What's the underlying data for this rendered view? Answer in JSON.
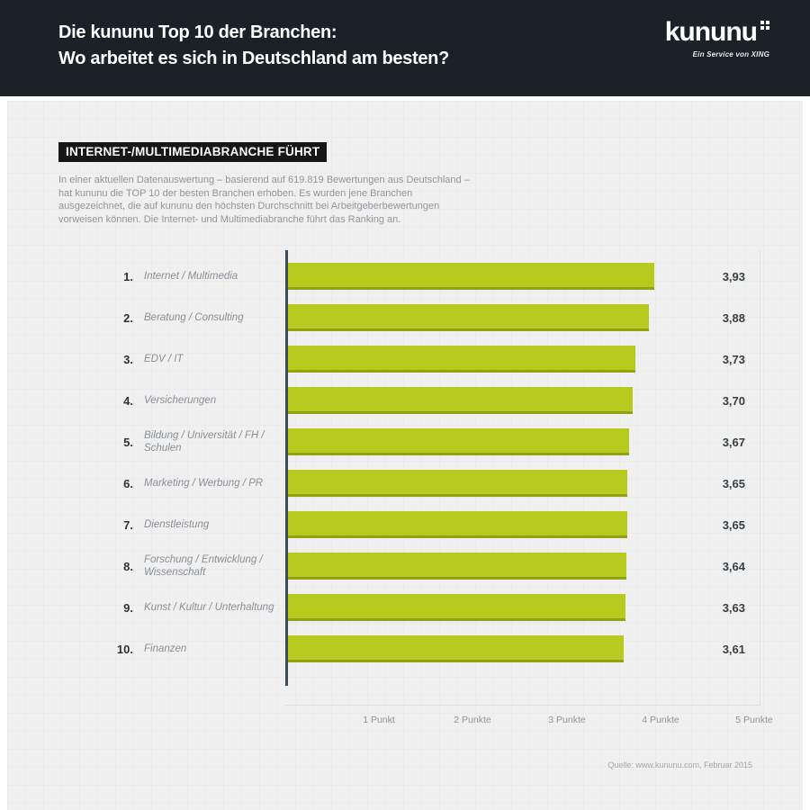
{
  "header": {
    "title_line1": "Die kununu Top 10 der Branchen:",
    "title_line2": "Wo arbeitet es sich in Deutschland am besten?",
    "logo_text": "kununu",
    "logo_tagline": "Ein Service von XING"
  },
  "intro": {
    "badge": "INTERNET-/MULTIMEDIABRANCHE FÜHRT",
    "paragraph": "In einer aktuellen Datenauswertung – basierend auf 619.819 Bewertungen aus Deutschland – hat kununu die TOP 10 der besten Branchen erhoben. Es wurden jene Branchen ausgezeichnet, die auf kununu den höchsten Durchschnitt bei Arbeitgeberbewertungen vorweisen können. Die Internet- und Multimediabranche führt das Ranking an."
  },
  "chart_data": {
    "type": "bar",
    "orientation": "horizontal",
    "ranks": [
      "1.",
      "2.",
      "3.",
      "4.",
      "5.",
      "6.",
      "7.",
      "8.",
      "9.",
      "10."
    ],
    "categories": [
      "Internet / Multimedia",
      "Beratung / Consulting",
      "EDV / IT",
      "Versicherungen",
      "Bildung / Universität / FH / Schulen",
      "Marketing / Werbung / PR",
      "Dienstleistung",
      "Forschung / Entwicklung / Wissenschaft",
      "Kunst / Kultur / Unterhaltung",
      "Finanzen"
    ],
    "values": [
      3.93,
      3.88,
      3.73,
      3.7,
      3.67,
      3.65,
      3.65,
      3.64,
      3.63,
      3.61
    ],
    "value_labels": [
      "3,93",
      "3,88",
      "3,73",
      "3,70",
      "3,67",
      "3,65",
      "3,65",
      "3,64",
      "3,63",
      "3,61"
    ],
    "xlim": [
      0,
      5
    ],
    "x_tick_values": [
      1,
      2,
      3,
      4,
      5
    ],
    "x_tick_labels": [
      "1 Punkt",
      "2 Punkte",
      "3 Punkte",
      "4 Punkte",
      "5 Punkte"
    ],
    "grid": false,
    "legend": "none"
  },
  "footer": {
    "source": "Quelle:  www.kununu.com, Februar 2015"
  },
  "colors": {
    "header_bg": "#1a2127",
    "panel_bg": "#eff0ef",
    "bar_color": "#b7cb1e",
    "bar_edge": "#93a315",
    "axis_color": "#3f4a55"
  }
}
